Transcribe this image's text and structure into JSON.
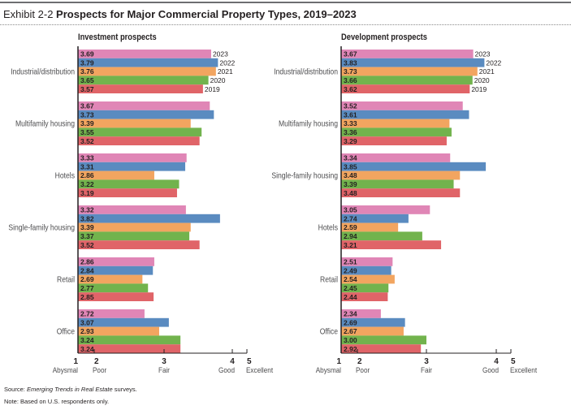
{
  "header": {
    "exhibit": "Exhibit 2-2",
    "title": "Prospects for Major Commercial Property Types, 2019–2023"
  },
  "footer": {
    "source_prefix": "Source: ",
    "source_italic": "Emerging Trends in Real Estate",
    "source_suffix": " surveys.",
    "note": "Note: Based on U.S. respondents only."
  },
  "colors": {
    "2023": "#e086b6",
    "2022": "#5a8bc0",
    "2021": "#f2a560",
    "2020": "#72b34d",
    "2019": "#e06468",
    "axis": "#231f20",
    "label": "#231f20",
    "category": "#4d4d4f"
  },
  "chart_data": [
    {
      "type": "bar",
      "orientation": "horizontal",
      "title": "Investment prospects",
      "years": [
        "2023",
        "2022",
        "2021",
        "2020",
        "2019"
      ],
      "categories": [
        "Industrial/distribution",
        "Multifamily housing",
        "Hotels",
        "Single-family housing",
        "Retail",
        "Office"
      ],
      "series": [
        {
          "name": "2023",
          "values": [
            3.69,
            3.67,
            3.33,
            3.32,
            2.86,
            2.72
          ]
        },
        {
          "name": "2022",
          "values": [
            3.79,
            3.73,
            3.31,
            3.82,
            2.84,
            3.07
          ]
        },
        {
          "name": "2021",
          "values": [
            3.76,
            3.39,
            2.86,
            3.39,
            2.69,
            2.93
          ]
        },
        {
          "name": "2020",
          "values": [
            3.65,
            3.55,
            3.22,
            3.37,
            2.77,
            3.24
          ]
        },
        {
          "name": "2019",
          "values": [
            3.57,
            3.52,
            3.19,
            3.52,
            2.85,
            3.24
          ]
        }
      ],
      "xlim": [
        1,
        5
      ],
      "xticks": [
        {
          "value": 1,
          "label": "1",
          "desc": "Abysmal"
        },
        {
          "value": 2,
          "label": "2",
          "desc": "Poor"
        },
        {
          "value": 3,
          "label": "3",
          "desc": "Fair"
        },
        {
          "value": 4,
          "label": "4",
          "desc": "Good"
        },
        {
          "value": 5,
          "label": "5",
          "desc": "Excellent"
        }
      ],
      "year_labels_on_group": "Industrial/distribution",
      "grid": false
    },
    {
      "type": "bar",
      "orientation": "horizontal",
      "title": "Development prospects",
      "years": [
        "2023",
        "2022",
        "2021",
        "2020",
        "2019"
      ],
      "categories": [
        "Industrial/distribution",
        "Multifamily housing",
        "Single-family housing",
        "Hotels",
        "Retail",
        "Office"
      ],
      "series": [
        {
          "name": "2023",
          "values": [
            3.67,
            3.52,
            3.34,
            3.05,
            2.51,
            2.34
          ]
        },
        {
          "name": "2022",
          "values": [
            3.83,
            3.61,
            3.85,
            2.74,
            2.49,
            2.69
          ]
        },
        {
          "name": "2021",
          "values": [
            3.73,
            3.33,
            3.48,
            2.59,
            2.54,
            2.67
          ]
        },
        {
          "name": "2020",
          "values": [
            3.66,
            3.36,
            3.39,
            2.94,
            2.45,
            3.0
          ]
        },
        {
          "name": "2019",
          "values": [
            3.62,
            3.29,
            3.48,
            3.21,
            2.44,
            2.92
          ]
        }
      ],
      "xlim": [
        1,
        5
      ],
      "xticks": [
        {
          "value": 1,
          "label": "1",
          "desc": "Abysmal"
        },
        {
          "value": 2,
          "label": "2",
          "desc": "Poor"
        },
        {
          "value": 3,
          "label": "3",
          "desc": "Fair"
        },
        {
          "value": 4,
          "label": "4",
          "desc": "Good"
        },
        {
          "value": 5,
          "label": "5",
          "desc": "Excellent"
        }
      ],
      "year_labels_on_group": "Industrial/distribution",
      "grid": false
    }
  ]
}
